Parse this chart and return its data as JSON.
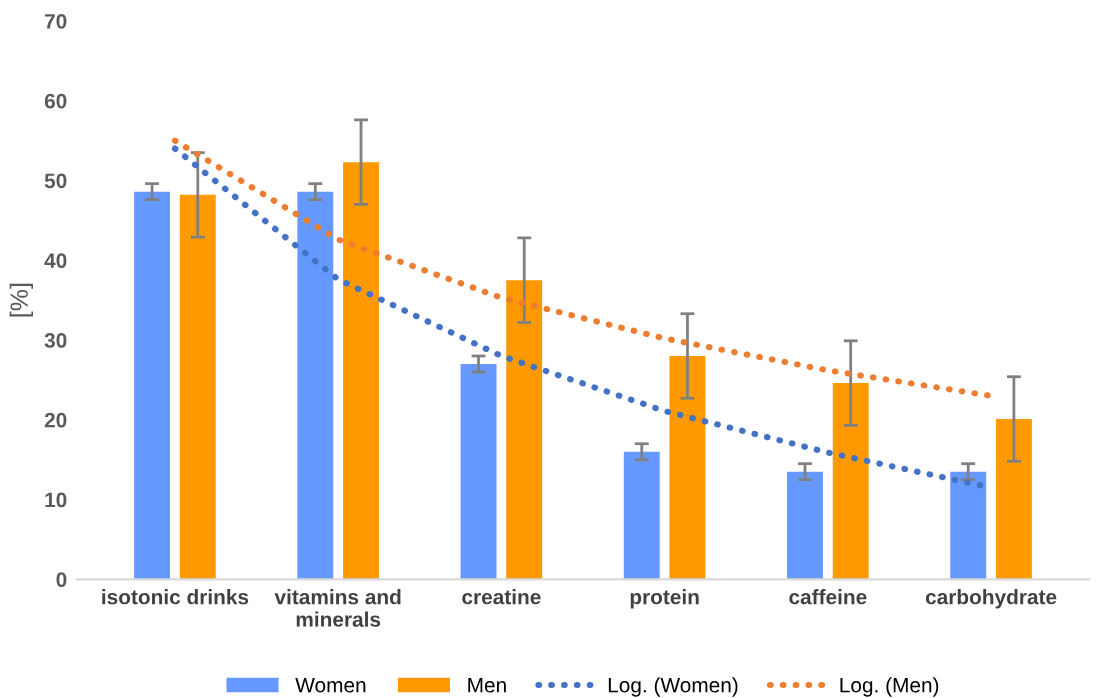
{
  "chart_data": {
    "type": "bar",
    "ylabel": "[%]",
    "categories": [
      "isotonic drinks",
      "vitamins and\nminerals",
      "creatine",
      "protein",
      "caffeine",
      "carbohydrate"
    ],
    "series": [
      {
        "name": "Women",
        "color": "#6699ff",
        "values": [
          48.6,
          48.6,
          27.0,
          16.0,
          13.5,
          13.5
        ],
        "errors": [
          1,
          1,
          1,
          1,
          1,
          1
        ]
      },
      {
        "name": "Men",
        "color": "#ff9900",
        "values": [
          48.2,
          52.3,
          37.5,
          28.0,
          24.6,
          20.1
        ],
        "errors": [
          5.3,
          5.3,
          5.3,
          5.3,
          5.3,
          5.3
        ]
      },
      {
        "name": "Log. (Women)",
        "type": "line",
        "color": "#4472c4",
        "line_style": "dotted",
        "values": [
          54.0,
          37.6,
          28.0,
          21.1,
          15.9,
          11.5
        ]
      },
      {
        "name": "Log. (Men)",
        "type": "line",
        "color": "#ed7d31",
        "line_style": "dotted",
        "values": [
          55.0,
          42.6,
          35.3,
          30.2,
          26.2,
          23.0
        ]
      }
    ],
    "ylim": [
      0,
      70
    ],
    "yticks": [
      0,
      10,
      20,
      30,
      40,
      50,
      60,
      70
    ],
    "grid": false,
    "legend": "bottom"
  }
}
